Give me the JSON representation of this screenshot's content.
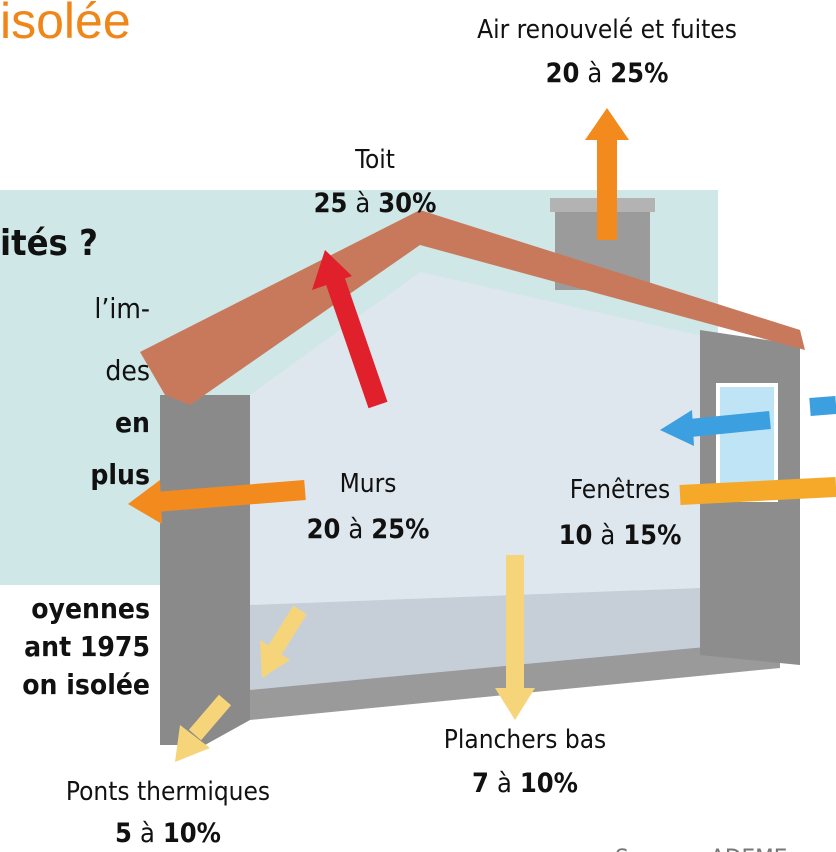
{
  "heading_fragment": "isolée",
  "left_text": {
    "heading": "ités ?",
    "lines": [
      "l’im-",
      "des",
      "en",
      "plus"
    ],
    "footer_lines": [
      "oyennes",
      "ant 1975",
      "on isolée"
    ]
  },
  "losses": [
    {
      "label": "Air renouvelé et fuites",
      "low": "20",
      "sep": "à",
      "high": "25%"
    },
    {
      "label": "Toit",
      "low": "25",
      "sep": "à",
      "high": "30%"
    },
    {
      "label": "Murs",
      "low": "20",
      "sep": "à",
      "high": "25%"
    },
    {
      "label": "Fenêtres",
      "low": "10",
      "sep": "à",
      "high": "15%"
    },
    {
      "label": "Planchers bas",
      "low": "7",
      "sep": "à",
      "high": "10%"
    },
    {
      "label": "Ponts thermiques",
      "low": "5",
      "sep": "à",
      "high": "10%"
    }
  ],
  "source": "Source : ADEME"
}
